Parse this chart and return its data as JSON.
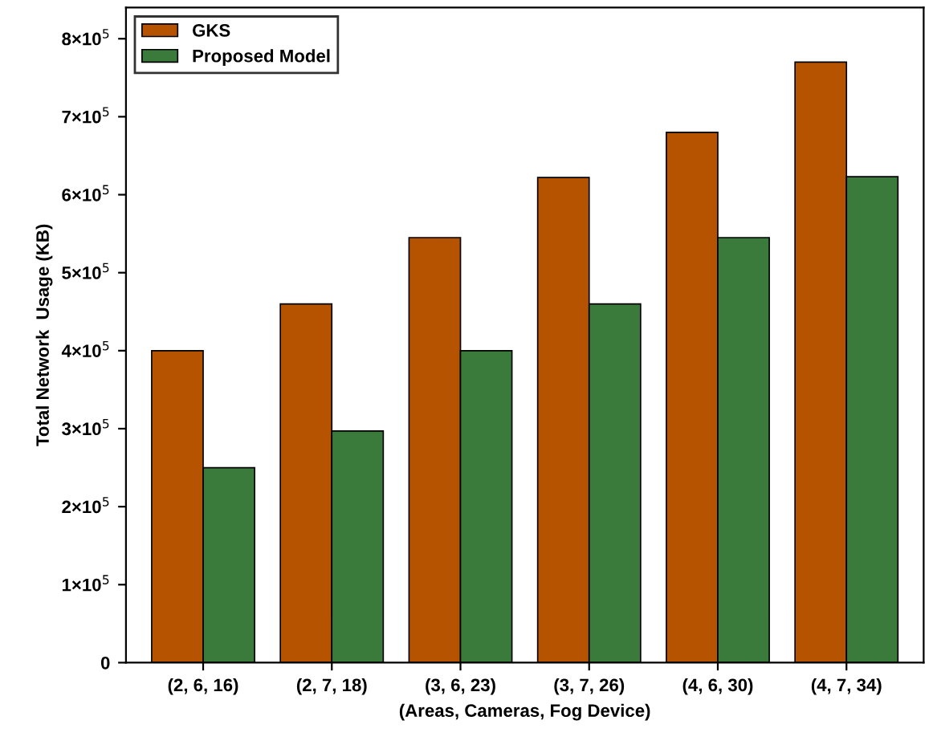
{
  "chart_data": {
    "type": "bar",
    "xlabel": "(Areas, Cameras, Fog Device)",
    "ylabel": "Total Network  Usage (KB)",
    "categories": [
      "(2, 6, 16)",
      "(2, 7, 18)",
      "(3, 6, 23)",
      "(3, 7, 26)",
      "(4, 6, 30)",
      "(4, 7, 34)"
    ],
    "series": [
      {
        "name": "GKS",
        "color": "#b65300",
        "values": [
          400000,
          460000,
          545000,
          622000,
          680000,
          770000
        ]
      },
      {
        "name": "Proposed Model",
        "color": "#3a7a3a",
        "values": [
          250000,
          297000,
          400000,
          460000,
          545000,
          623000
        ]
      }
    ],
    "ylim": [
      0,
      840000
    ],
    "yticks": [
      0,
      {
        "value": 100000,
        "label": "1×10$^{5}$"
      },
      {
        "value": 200000,
        "label": "2×10$^{5}$"
      },
      {
        "value": 300000,
        "label": "3×10$^{5}$"
      },
      {
        "value": 400000,
        "label": "4×10$^{5}$"
      },
      {
        "value": 500000,
        "label": "5×10$^{5}$"
      },
      {
        "value": 600000,
        "label": "6×10$^{5}$"
      },
      {
        "value": 700000,
        "label": "7×10$^{5}$"
      },
      {
        "value": 800000,
        "label": "8×10$^{5}$"
      }
    ],
    "legend": "top left",
    "grid": false
  }
}
